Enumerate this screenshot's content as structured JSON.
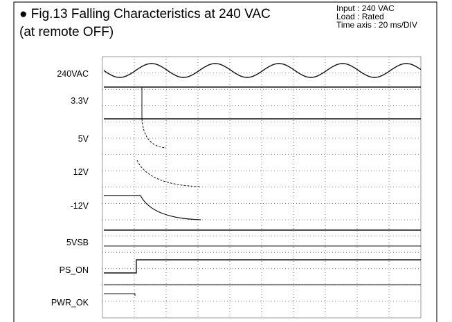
{
  "header": {
    "title": "● Fig.13  Falling Characteristics at 240 VAC",
    "subtitle": "(at remote OFF)"
  },
  "notes": [
    "Input : 240 VAC",
    "Load : Rated",
    "Time axis : 20 ms/DIV"
  ],
  "channels": [
    "240VAC",
    "3.3V",
    "5V",
    "12V",
    "-12V",
    "5VSB",
    "PS_ON",
    "PWR_OK"
  ]
}
